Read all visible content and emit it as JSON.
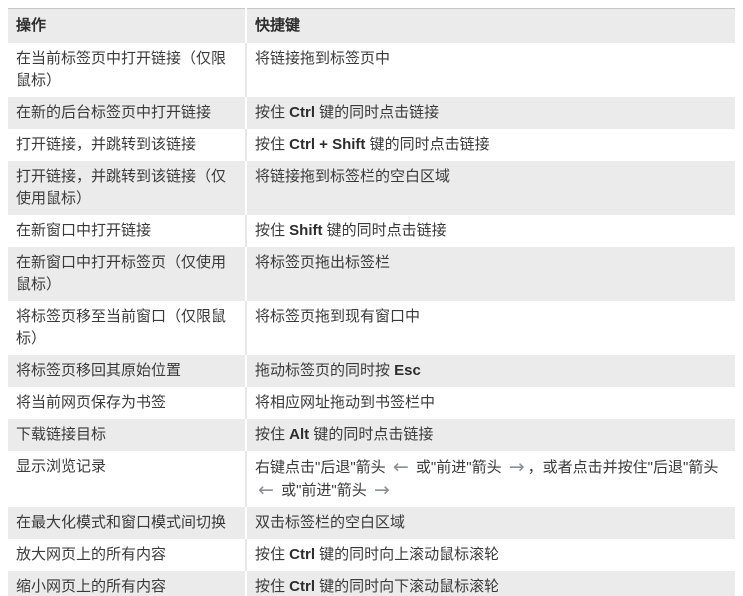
{
  "colors": {
    "row_alt_bg": "#ebebeb",
    "text": "#3a3a3a",
    "bold_text": "#2d2d2d",
    "arrow_icon": "#8a9096",
    "table_border": "#c6c6c6"
  },
  "icons": {
    "back-arrow": "←",
    "forward-arrow": "→"
  },
  "table": {
    "headers": {
      "action": "操作",
      "shortcut": "快捷键"
    },
    "rows": [
      {
        "action": "在当前标签页中打开链接（仅限鼠标）",
        "shortcut": [
          {
            "t": "将链接拖到标签页中"
          }
        ]
      },
      {
        "action": "在新的后台标签页中打开链接",
        "shortcut": [
          {
            "t": "按住 "
          },
          {
            "t": "Ctrl",
            "b": true
          },
          {
            "t": " 键的同时点击链接"
          }
        ]
      },
      {
        "action": "打开链接，并跳转到该链接",
        "shortcut": [
          {
            "t": "按住 "
          },
          {
            "t": "Ctrl + Shift",
            "b": true
          },
          {
            "t": " 键的同时点击链接"
          }
        ]
      },
      {
        "action": "打开链接，并跳转到该链接（仅使用鼠标）",
        "shortcut": [
          {
            "t": "将链接拖到标签栏的空白区域"
          }
        ]
      },
      {
        "action": "在新窗口中打开链接",
        "shortcut": [
          {
            "t": "按住 "
          },
          {
            "t": "Shift",
            "b": true
          },
          {
            "t": " 键的同时点击链接"
          }
        ]
      },
      {
        "action": "在新窗口中打开标签页（仅使用鼠标）",
        "shortcut": [
          {
            "t": "将标签页拖出标签栏"
          }
        ]
      },
      {
        "action": "将标签页移至当前窗口（仅限鼠标）",
        "shortcut": [
          {
            "t": "将标签页拖到现有窗口中"
          }
        ]
      },
      {
        "action": "将标签页移回其原始位置",
        "shortcut": [
          {
            "t": "拖动标签页的同时按 "
          },
          {
            "t": "Esc",
            "b": true
          }
        ]
      },
      {
        "action": "将当前网页保存为书签",
        "shortcut": [
          {
            "t": "将相应网址拖动到书签栏中"
          }
        ]
      },
      {
        "action": "下载链接目标",
        "shortcut": [
          {
            "t": "按住 "
          },
          {
            "t": "Alt",
            "b": true
          },
          {
            "t": " 键的同时点击链接"
          }
        ]
      },
      {
        "action": "显示浏览记录",
        "shortcut": [
          {
            "t": "右键点击\"后退\"箭头 "
          },
          {
            "icon": "back-arrow"
          },
          {
            "t": " 或\"前进\"箭头 "
          },
          {
            "icon": "forward-arrow"
          },
          {
            "t": "，或者点击并按住\"后退\"箭头 "
          },
          {
            "icon": "back-arrow"
          },
          {
            "t": " 或\"前进\"箭头 "
          },
          {
            "icon": "forward-arrow"
          }
        ]
      },
      {
        "action": "在最大化模式和窗口模式间切换",
        "shortcut": [
          {
            "t": "双击标签栏的空白区域"
          }
        ]
      },
      {
        "action": "放大网页上的所有内容",
        "shortcut": [
          {
            "t": "按住 "
          },
          {
            "t": "Ctrl",
            "b": true
          },
          {
            "t": " 键的同时向上滚动鼠标滚轮"
          }
        ]
      },
      {
        "action": "缩小网页上的所有内容",
        "shortcut": [
          {
            "t": "按住 "
          },
          {
            "t": "Ctrl",
            "b": true
          },
          {
            "t": " 键的同时向下滚动鼠标滚轮"
          }
        ]
      }
    ]
  }
}
